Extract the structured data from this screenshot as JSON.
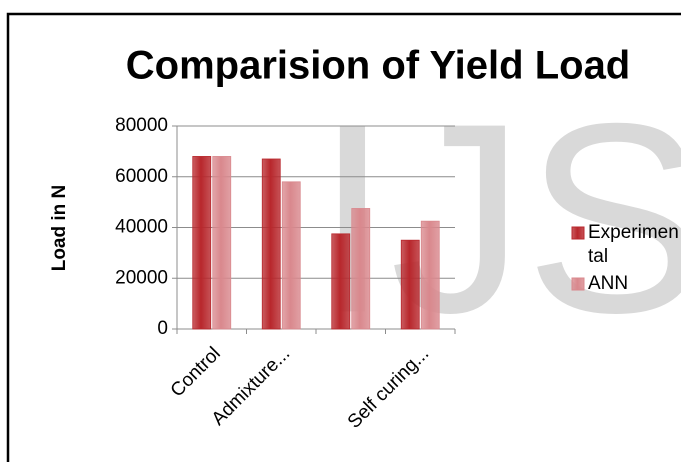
{
  "chart_data": {
    "type": "bar",
    "title": "Comparision of Yield Load",
    "watermark": "IJS",
    "y_label": "Load in N",
    "categories": [
      "Control",
      "Admixture...",
      null,
      "Self curing..."
    ],
    "series": [
      {
        "name": "Experimental",
        "color": "#b8272c",
        "values": [
          68000,
          67000,
          37500,
          35000
        ]
      },
      {
        "name": "ANN",
        "color": "#d9888d",
        "values": [
          68000,
          58000,
          47500,
          42500
        ]
      }
    ],
    "ylim": [
      0,
      80000
    ],
    "yticks": [
      0,
      20000,
      40000,
      60000,
      80000
    ],
    "grid": true,
    "legend": "right"
  }
}
